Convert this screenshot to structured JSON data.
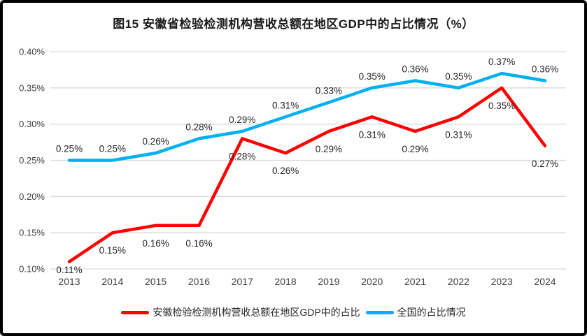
{
  "title": "图15  安徽省检验检测机构营收总额在地区GDP中的占比情况（%）",
  "chart_data": {
    "type": "line",
    "x": [
      "2013",
      "2014",
      "2015",
      "2016",
      "2017",
      "2018",
      "2019",
      "2020",
      "2021",
      "2022",
      "2023",
      "2024"
    ],
    "series": [
      {
        "name": "安徽检验检测机构营收总额在地区GDP中的占比",
        "color": "#ff0000",
        "values": [
          0.11,
          0.15,
          0.16,
          0.16,
          0.28,
          0.26,
          0.29,
          0.31,
          0.29,
          0.31,
          0.35,
          0.27
        ],
        "labels": [
          "0.11%",
          "0.15%",
          "0.16%",
          "0.16%",
          "0.28%",
          "0.26%",
          "0.29%",
          "0.31%",
          "0.29%",
          "0.31%",
          "0.35%",
          "0.27%"
        ],
        "label_position": "below"
      },
      {
        "name": "全国的占比情况",
        "color": "#00b0f0",
        "values": [
          0.25,
          0.25,
          0.26,
          0.28,
          0.29,
          0.31,
          0.33,
          0.35,
          0.36,
          0.35,
          0.37,
          0.36
        ],
        "labels": [
          "0.25%",
          "0.25%",
          "0.26%",
          "0.28%",
          "0.29%",
          "0.31%",
          "0.33%",
          "0.35%",
          "0.36%",
          "0.35%",
          "0.37%",
          "0.36%"
        ],
        "label_position": "above"
      }
    ],
    "ylabel": "",
    "xlabel": "",
    "ylim": [
      0.1,
      0.4
    ],
    "ytick_step": 0.05,
    "yticks": [
      "0.40%",
      "0.35%",
      "0.30%",
      "0.25%",
      "0.20%",
      "0.15%",
      "0.10%"
    ],
    "grid": true,
    "legend_position": "bottom",
    "data_labels": true
  },
  "colors": {
    "grid": "#d9d9d9",
    "axis_text": "#404040",
    "data_label_text": "#262626",
    "border": "#000000",
    "background": "#ffffff"
  }
}
